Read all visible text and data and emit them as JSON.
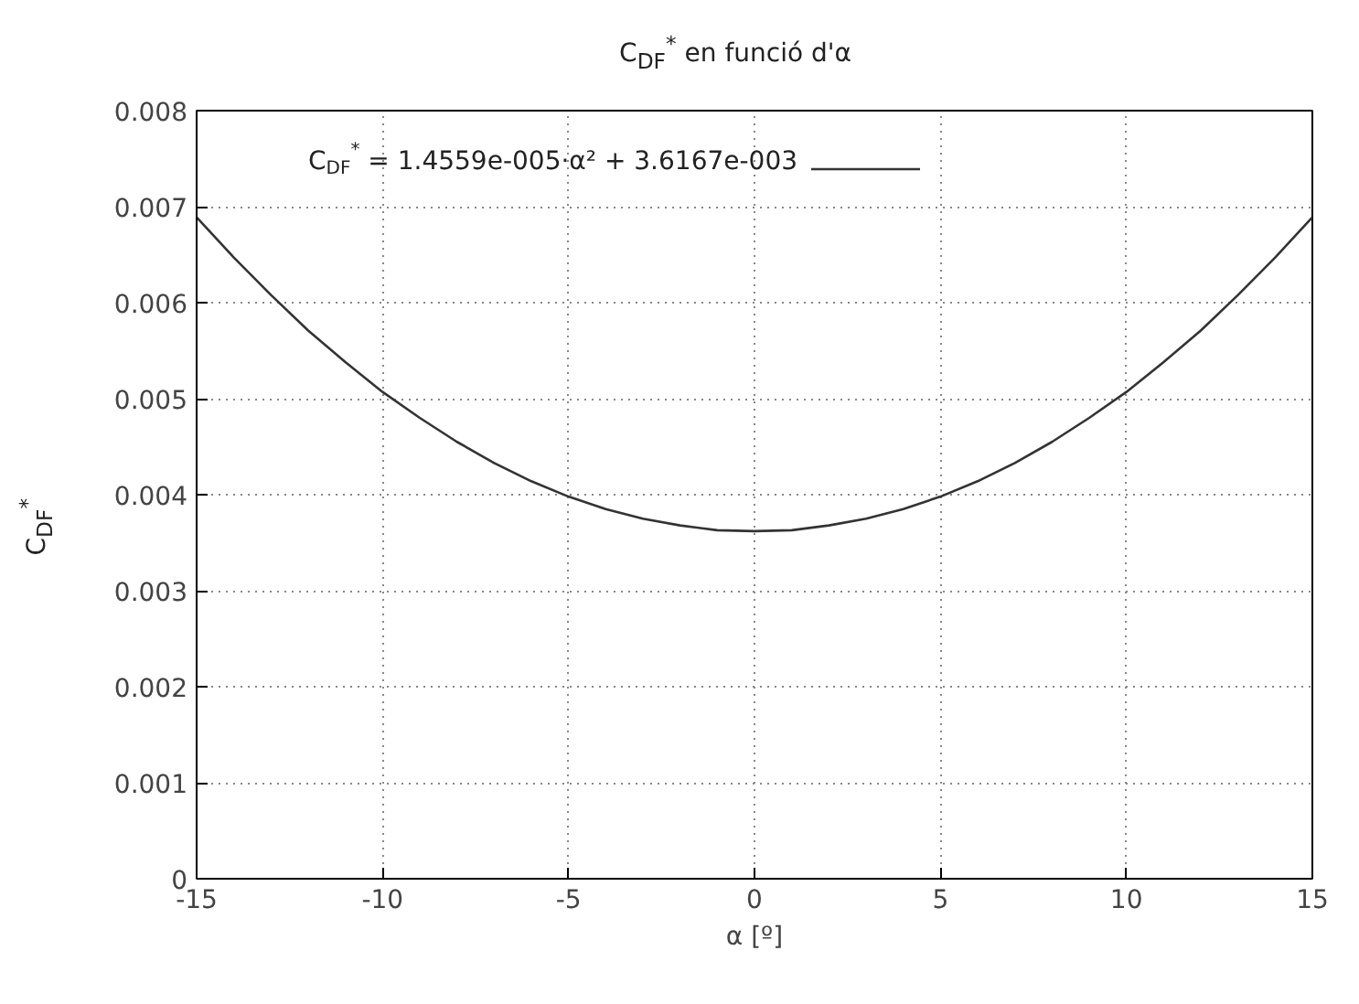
{
  "chart_data": {
    "type": "line",
    "title": "C$_{DF}$$^{*}$ en funció d'α",
    "xlabel": "α [º]",
    "ylabel": "C$_{DF}$$^{*}$",
    "x": [
      -15,
      -14,
      -13,
      -12,
      -11,
      -10,
      -9,
      -8,
      -7,
      -6,
      -5,
      -4,
      -3,
      -2,
      -1,
      0,
      1,
      2,
      3,
      4,
      5,
      6,
      7,
      8,
      9,
      10,
      11,
      12,
      13,
      14,
      15
    ],
    "series": [
      {
        "name": "C$_{DF}$$^{*}$ = 1.4559e-005·α² + 3.6167e-003",
        "color": "#333333",
        "values": [
          0.00689,
          0.00647,
          0.00608,
          0.00571,
          0.00538,
          0.00507,
          0.0048,
          0.00455,
          0.00433,
          0.00414,
          0.00398,
          0.00385,
          0.00375,
          0.00368,
          0.00363,
          0.00362,
          0.00363,
          0.00368,
          0.00375,
          0.00385,
          0.00398,
          0.00414,
          0.00433,
          0.00455,
          0.0048,
          0.00507,
          0.00538,
          0.00571,
          0.00608,
          0.00647,
          0.00689
        ]
      }
    ],
    "xlim": [
      -15,
      15
    ],
    "ylim": [
      0,
      0.008
    ],
    "xticks": [
      -15,
      -10,
      -5,
      0,
      5,
      10,
      15
    ],
    "yticks": [
      0,
      {
        "value": 0.001,
        "label": "0.001"
      },
      {
        "value": 0.002,
        "label": "0.002"
      },
      {
        "value": 0.003,
        "label": "0.003"
      },
      {
        "value": 0.004,
        "label": "0.004"
      },
      {
        "value": 0.005,
        "label": "0.005"
      },
      {
        "value": 0.006,
        "label": "0.006"
      },
      {
        "value": 0.007,
        "label": "0.007"
      },
      {
        "value": 0.008,
        "label": "0.008"
      }
    ],
    "grid": true,
    "legend": "top left",
    "line_style": "solid",
    "marker": "none"
  }
}
